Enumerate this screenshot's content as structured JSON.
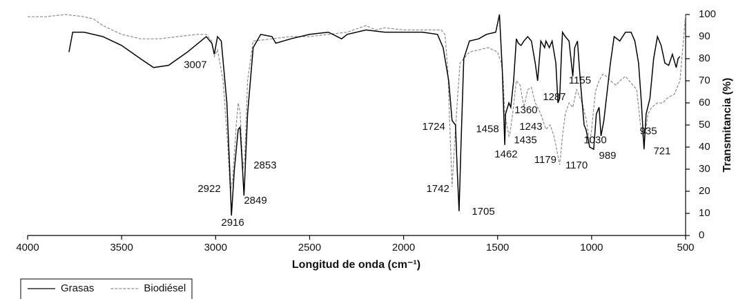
{
  "chart_data": {
    "type": "line",
    "xlabel": "Longitud de onda (cm⁻¹)",
    "ylabel": "Transmitancia (%)",
    "xlim": [
      4000,
      500
    ],
    "ylim": [
      0,
      100
    ],
    "xticks": [
      4000,
      3500,
      3000,
      2500,
      2000,
      1500,
      1000,
      500
    ],
    "yticks": [
      0,
      10,
      20,
      30,
      40,
      50,
      60,
      70,
      80,
      90,
      100
    ],
    "y_axis_side": "right",
    "series": [
      {
        "name": "Grasas",
        "color": "#000000",
        "dash": "solid",
        "x": [
          3780,
          3760,
          3700,
          3600,
          3500,
          3400,
          3330,
          3250,
          3150,
          3050,
          3020,
          3007,
          2990,
          2970,
          2940,
          2925,
          2916,
          2900,
          2880,
          2870,
          2860,
          2849,
          2830,
          2800,
          2760,
          2700,
          2680,
          2600,
          2500,
          2400,
          2330,
          2300,
          2200,
          2100,
          2000,
          1900,
          1820,
          1790,
          1760,
          1742,
          1724,
          1715,
          1705,
          1695,
          1680,
          1650,
          1600,
          1560,
          1510,
          1490,
          1475,
          1462,
          1458,
          1440,
          1430,
          1415,
          1400,
          1390,
          1375,
          1360,
          1340,
          1320,
          1300,
          1287,
          1270,
          1250,
          1243,
          1225,
          1210,
          1190,
          1179,
          1170,
          1160,
          1155,
          1140,
          1120,
          1100,
          1090,
          1075,
          1060,
          1040,
          1030,
          1010,
          989,
          975,
          960,
          950,
          935,
          900,
          880,
          850,
          820,
          790,
          770,
          750,
          735,
          721,
          710,
          690,
          670,
          650,
          630,
          610,
          590,
          570,
          550,
          540,
          530
        ],
        "values": [
          83,
          92,
          92,
          90,
          86,
          80,
          76,
          77,
          83,
          90,
          87,
          82,
          90,
          88,
          60,
          30,
          9,
          30,
          48,
          49,
          35,
          18,
          55,
          85,
          91,
          90,
          87,
          89,
          91,
          92,
          89,
          91,
          93,
          92,
          92,
          92,
          91,
          85,
          70,
          52,
          50,
          30,
          11,
          40,
          80,
          88,
          89,
          91,
          92,
          100,
          75,
          41,
          55,
          60,
          58,
          70,
          89,
          87,
          86,
          88,
          90,
          88,
          78,
          70,
          88,
          85,
          88,
          85,
          88,
          78,
          60,
          62,
          83,
          92,
          90,
          88,
          72,
          85,
          88,
          70,
          50,
          48,
          40,
          39,
          55,
          58,
          45,
          52,
          78,
          90,
          88,
          92,
          92,
          88,
          78,
          60,
          39,
          55,
          62,
          80,
          90,
          86,
          78,
          77,
          82,
          76,
          80,
          81
        ]
      },
      {
        "name": "Biodiésel",
        "color": "#8c8c8c",
        "dash": "dashed",
        "x": [
          4000,
          3900,
          3800,
          3700,
          3650,
          3600,
          3500,
          3400,
          3300,
          3200,
          3100,
          3050,
          3020,
          3007,
          2990,
          2960,
          2935,
          2922,
          2910,
          2890,
          2880,
          2870,
          2855,
          2845,
          2830,
          2800,
          2700,
          2600,
          2500,
          2400,
          2300,
          2200,
          2150,
          2100,
          2000,
          1900,
          1800,
          1780,
          1765,
          1750,
          1742,
          1730,
          1715,
          1700,
          1680,
          1650,
          1600,
          1550,
          1500,
          1480,
          1470,
          1462,
          1440,
          1435,
          1420,
          1400,
          1380,
          1360,
          1340,
          1320,
          1300,
          1287,
          1270,
          1243,
          1220,
          1200,
          1179,
          1170,
          1155,
          1140,
          1120,
          1100,
          1080,
          1050,
          1030,
          1010,
          1000,
          980,
          960,
          940,
          920,
          900,
          870,
          850,
          820,
          790,
          760,
          740,
          721,
          700,
          680,
          650,
          620,
          600,
          560,
          530,
          510,
          500
        ],
        "values": [
          99,
          99,
          100,
          99,
          98,
          95,
          91,
          89,
          89,
          90,
          91,
          91,
          88,
          81,
          84,
          70,
          40,
          20,
          25,
          50,
          60,
          56,
          30,
          35,
          70,
          88,
          89,
          90,
          90,
          91,
          92,
          95,
          93,
          94,
          93,
          93,
          93,
          91,
          75,
          40,
          22,
          40,
          60,
          78,
          80,
          83,
          84,
          85,
          83,
          78,
          70,
          55,
          45,
          46,
          55,
          70,
          68,
          58,
          66,
          67,
          60,
          58,
          55,
          48,
          50,
          45,
          36,
          32,
          45,
          55,
          60,
          58,
          66,
          60,
          53,
          42,
          48,
          65,
          70,
          73,
          72,
          70,
          68,
          70,
          72,
          69,
          66,
          50,
          42,
          55,
          58,
          60,
          60,
          62,
          64,
          70,
          90,
          100
        ]
      }
    ],
    "annotations": [
      {
        "text": "3007",
        "x": 3108,
        "y": 77
      },
      {
        "text": "2922",
        "x": 3034,
        "y": 21
      },
      {
        "text": "2916",
        "x": 2909,
        "y": 5.6
      },
      {
        "text": "2849",
        "x": 2788,
        "y": 15.6
      },
      {
        "text": "2853",
        "x": 2737,
        "y": 31.6
      },
      {
        "text": "1724",
        "x": 1840,
        "y": 49
      },
      {
        "text": "1742",
        "x": 1818,
        "y": 21
      },
      {
        "text": "1705",
        "x": 1576,
        "y": 10.6
      },
      {
        "text": "1458",
        "x": 1554,
        "y": 48
      },
      {
        "text": "1462",
        "x": 1455,
        "y": 36.6
      },
      {
        "text": "1360",
        "x": 1349,
        "y": 56.6
      },
      {
        "text": "1435",
        "x": 1352,
        "y": 43
      },
      {
        "text": "1243",
        "x": 1323,
        "y": 49
      },
      {
        "text": "1287",
        "x": 1198,
        "y": 62.5
      },
      {
        "text": "1179",
        "x": 1246,
        "y": 34
      },
      {
        "text": "1155",
        "x": 1062,
        "y": 70
      },
      {
        "text": "1170",
        "x": 1080,
        "y": 31.6
      },
      {
        "text": "1030",
        "x": 981,
        "y": 43
      },
      {
        "text": "989",
        "x": 915,
        "y": 36
      },
      {
        "text": "935",
        "x": 698,
        "y": 47
      },
      {
        "text": "721",
        "x": 625,
        "y": 38
      }
    ],
    "legend": "bottom-left"
  }
}
